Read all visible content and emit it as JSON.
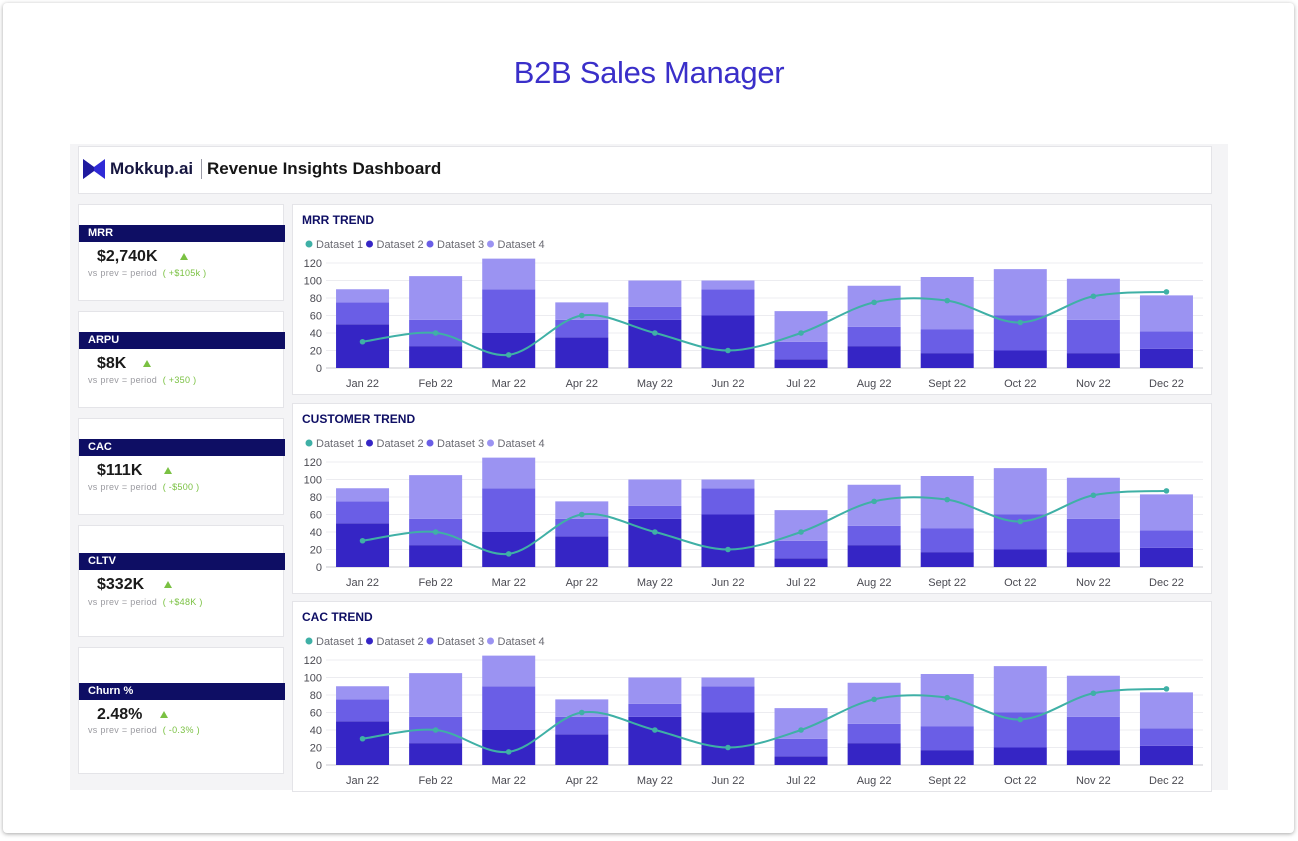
{
  "page": {
    "title": "B2B Sales Manager"
  },
  "header": {
    "logo_text": "Mokkup.ai",
    "dashboard_title": "Revenue Insights Dashboard"
  },
  "colors": {
    "title": "#3a2fc9",
    "kpi_header": "#0e0e64",
    "positive": "#7ac142",
    "dataset1": "#3fb0a6",
    "dataset2": "#3525c5",
    "dataset3": "#6a5ee6",
    "dataset4": "#9b93f2"
  },
  "icons": {
    "logo": "mokkup-logo-icon",
    "trend_up": "triangle-up-icon"
  },
  "kpis": [
    {
      "label": "MRR",
      "value": "$2,740K",
      "sub": "vs prev = period",
      "delta": "( +$105k )"
    },
    {
      "label": "ARPU",
      "value": "$8K",
      "sub": "vs prev = period",
      "delta": "( +350 )"
    },
    {
      "label": "CAC",
      "value": "$111K",
      "sub": "vs prev = period",
      "delta": "( -$500 )"
    },
    {
      "label": "CLTV",
      "value": "$332K",
      "sub": "vs prev = period",
      "delta": "( +$48K )"
    },
    {
      "label": "Churn %",
      "value": "2.48%",
      "sub": "vs prev = period",
      "delta": "( -0.3% )"
    }
  ],
  "chart_data": [
    {
      "type": "bar",
      "title": "MRR TREND",
      "categories": [
        "Jan 22",
        "Feb 22",
        "Mar 22",
        "Apr 22",
        "May 22",
        "Jun 22",
        "Jul 22",
        "Aug 22",
        "Sept 22",
        "Oct 22",
        "Nov 22",
        "Dec 22"
      ],
      "series": [
        {
          "name": "Dataset 1",
          "kind": "line",
          "values": [
            30,
            40,
            15,
            60,
            40,
            20,
            40,
            75,
            77,
            52,
            82,
            87
          ]
        },
        {
          "name": "Dataset 2",
          "kind": "bar",
          "values": [
            50,
            25,
            40,
            35,
            55,
            60,
            10,
            25,
            17,
            20,
            17,
            22
          ]
        },
        {
          "name": "Dataset 3",
          "kind": "bar",
          "values": [
            25,
            30,
            50,
            20,
            15,
            30,
            20,
            22,
            27,
            40,
            38,
            20
          ]
        },
        {
          "name": "Dataset 4",
          "kind": "bar",
          "values": [
            15,
            50,
            35,
            20,
            30,
            10,
            35,
            47,
            60,
            53,
            47,
            41
          ]
        }
      ],
      "yticks": [
        0,
        20,
        40,
        60,
        80,
        100,
        120
      ],
      "ylim": [
        0,
        120
      ],
      "stacked": true,
      "grid": true,
      "legend": "top-left"
    },
    {
      "type": "bar",
      "title": "CUSTOMER TREND",
      "categories": [
        "Jan 22",
        "Feb 22",
        "Mar 22",
        "Apr 22",
        "May 22",
        "Jun 22",
        "Jul 22",
        "Aug 22",
        "Sept 22",
        "Oct 22",
        "Nov 22",
        "Dec 22"
      ],
      "series": [
        {
          "name": "Dataset 1",
          "kind": "line",
          "values": [
            30,
            40,
            15,
            60,
            40,
            20,
            40,
            75,
            77,
            52,
            82,
            87
          ]
        },
        {
          "name": "Dataset 2",
          "kind": "bar",
          "values": [
            50,
            25,
            40,
            35,
            55,
            60,
            10,
            25,
            17,
            20,
            17,
            22
          ]
        },
        {
          "name": "Dataset 3",
          "kind": "bar",
          "values": [
            25,
            30,
            50,
            20,
            15,
            30,
            20,
            22,
            27,
            40,
            38,
            20
          ]
        },
        {
          "name": "Dataset 4",
          "kind": "bar",
          "values": [
            15,
            50,
            35,
            20,
            30,
            10,
            35,
            47,
            60,
            53,
            47,
            41
          ]
        }
      ],
      "yticks": [
        0,
        20,
        40,
        60,
        80,
        100,
        120
      ],
      "ylim": [
        0,
        120
      ],
      "stacked": true,
      "grid": true,
      "legend": "top-left"
    },
    {
      "type": "bar",
      "title": "CAC TREND",
      "categories": [
        "Jan 22",
        "Feb 22",
        "Mar 22",
        "Apr 22",
        "May 22",
        "Jun 22",
        "Jul 22",
        "Aug 22",
        "Sept 22",
        "Oct 22",
        "Nov 22",
        "Dec 22"
      ],
      "series": [
        {
          "name": "Dataset 1",
          "kind": "line",
          "values": [
            30,
            40,
            15,
            60,
            40,
            20,
            40,
            75,
            77,
            52,
            82,
            87
          ]
        },
        {
          "name": "Dataset 2",
          "kind": "bar",
          "values": [
            50,
            25,
            40,
            35,
            55,
            60,
            10,
            25,
            17,
            20,
            17,
            22
          ]
        },
        {
          "name": "Dataset 3",
          "kind": "bar",
          "values": [
            25,
            30,
            50,
            20,
            15,
            30,
            20,
            22,
            27,
            40,
            38,
            20
          ]
        },
        {
          "name": "Dataset 4",
          "kind": "bar",
          "values": [
            15,
            50,
            35,
            20,
            30,
            10,
            35,
            47,
            60,
            53,
            47,
            41
          ]
        }
      ],
      "yticks": [
        0,
        20,
        40,
        60,
        80,
        100,
        120
      ],
      "ylim": [
        0,
        120
      ],
      "stacked": true,
      "grid": true,
      "legend": "top-left"
    }
  ]
}
